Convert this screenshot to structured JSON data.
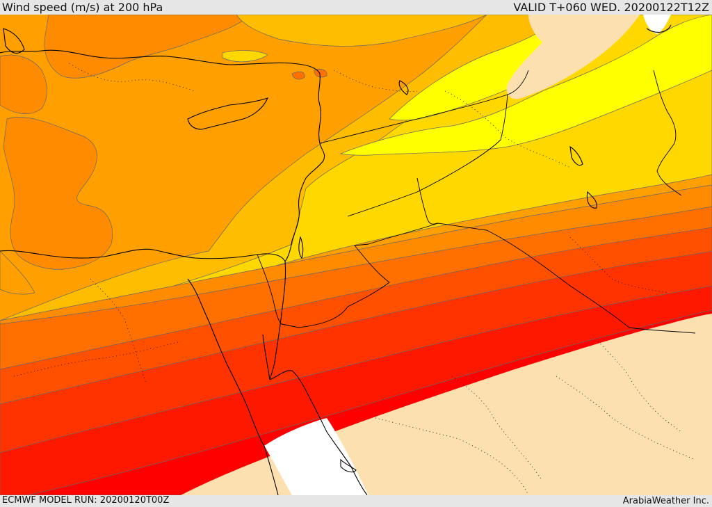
{
  "header": {
    "title": "Wind speed (m/s) at 200 hPa",
    "valid_time": "VALID T+060 WED. 20200122T12Z"
  },
  "footer": {
    "model_run": "ECMWF MODEL RUN: 20200120T00Z",
    "credit": "ArabiaWeather Inc."
  },
  "map": {
    "colors": {
      "land_no_wind": "#fde0b0",
      "no_data_white": "#ffffff",
      "band_yellow": "#ffff00",
      "band_gold": "#ffd800",
      "band_amber": "#ffbd00",
      "band_orange_light": "#ffa000",
      "band_orange": "#ff8c00",
      "band_orange_dark": "#ff7000",
      "band_red_orange": "#ff5000",
      "band_red_orange_2": "#ff3300",
      "band_red": "#ff1800",
      "band_deep_red": "#ff0000",
      "coastline": "#000000",
      "border_dotted": "#000000",
      "contour_line": "#666666"
    }
  }
}
